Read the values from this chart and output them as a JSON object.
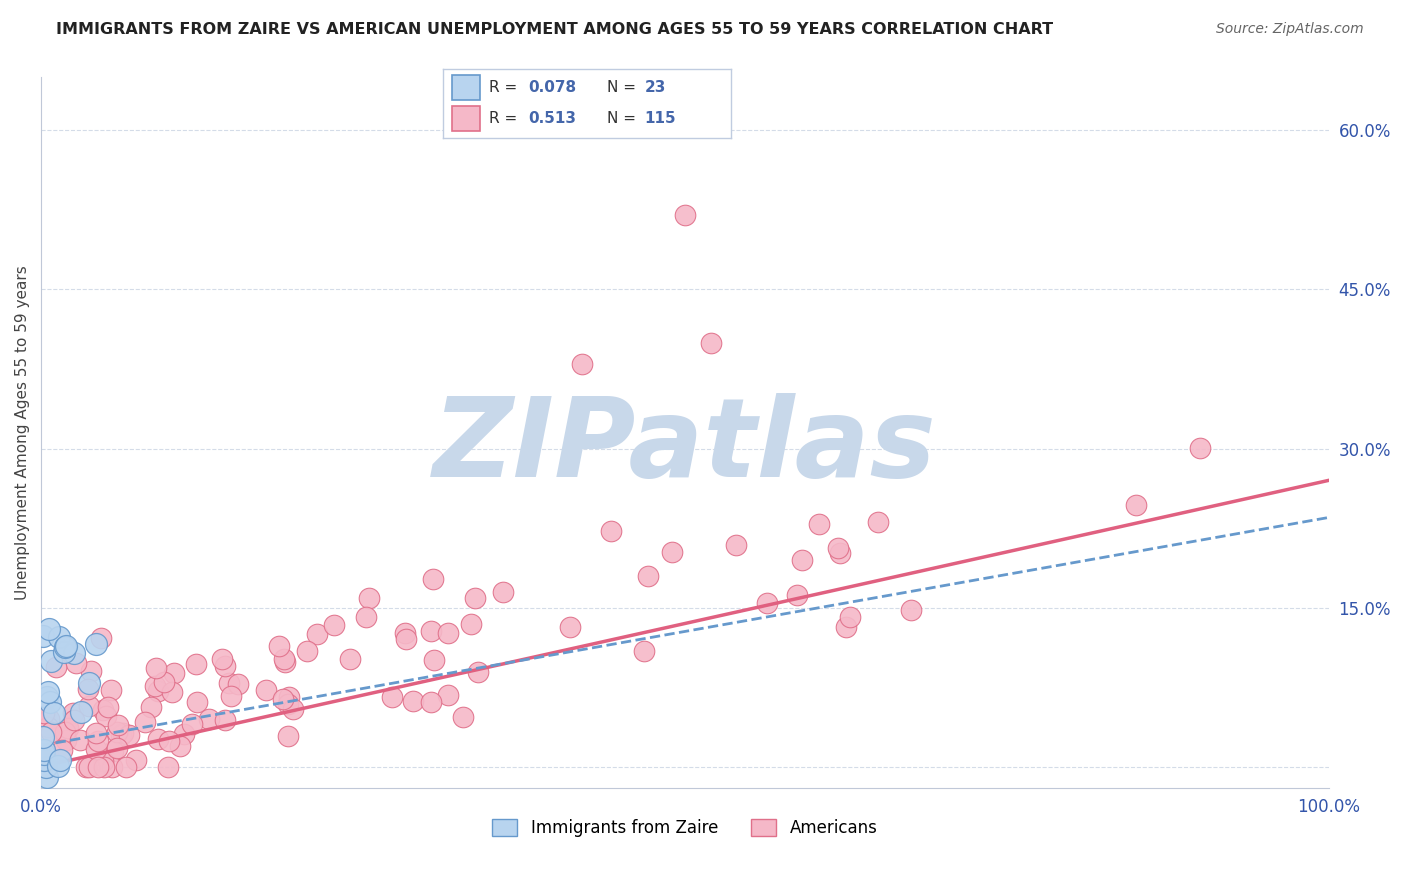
{
  "title": "IMMIGRANTS FROM ZAIRE VS AMERICAN UNEMPLOYMENT AMONG AGES 55 TO 59 YEARS CORRELATION CHART",
  "source": "Source: ZipAtlas.com",
  "ylabel": "Unemployment Among Ages 55 to 59 years",
  "xlim": [
    0,
    1.0
  ],
  "ylim": [
    -0.02,
    0.65
  ],
  "xticks": [
    0.0,
    0.1,
    0.2,
    0.3,
    0.4,
    0.5,
    0.6,
    0.7,
    0.8,
    0.9,
    1.0
  ],
  "xticklabels": [
    "0.0%",
    "",
    "",
    "",
    "",
    "",
    "",
    "",
    "",
    "",
    "100.0%"
  ],
  "ytick_positions": [
    0.0,
    0.15,
    0.3,
    0.45,
    0.6
  ],
  "yticklabels": [
    "",
    "15.0%",
    "30.0%",
    "45.0%",
    "60.0%"
  ],
  "legend_label1": "Immigrants from Zaire",
  "legend_label2": "Americans",
  "color_zaire_fill": "#b8d4ef",
  "color_zaire_edge": "#6699cc",
  "color_americans_fill": "#f5b8c8",
  "color_americans_edge": "#e0708a",
  "trend_color_zaire": "#6699cc",
  "trend_color_americans": "#e06080",
  "watermark": "ZIPatlas",
  "watermark_color": "#c8d8ea",
  "background_color": "#ffffff",
  "grid_color": "#d4dce8",
  "legend_text_color": "#4466aa",
  "legend_r_text_color": "#333333",
  "title_color": "#222222",
  "axis_label_color": "#444444",
  "tick_color": "#3355aa",
  "trend_am_x0": 0.0,
  "trend_am_y0": 0.0,
  "trend_am_x1": 1.0,
  "trend_am_y1": 0.27,
  "trend_z_x0": 0.0,
  "trend_z_y0": 0.02,
  "trend_z_x1": 1.0,
  "trend_z_y1": 0.235
}
